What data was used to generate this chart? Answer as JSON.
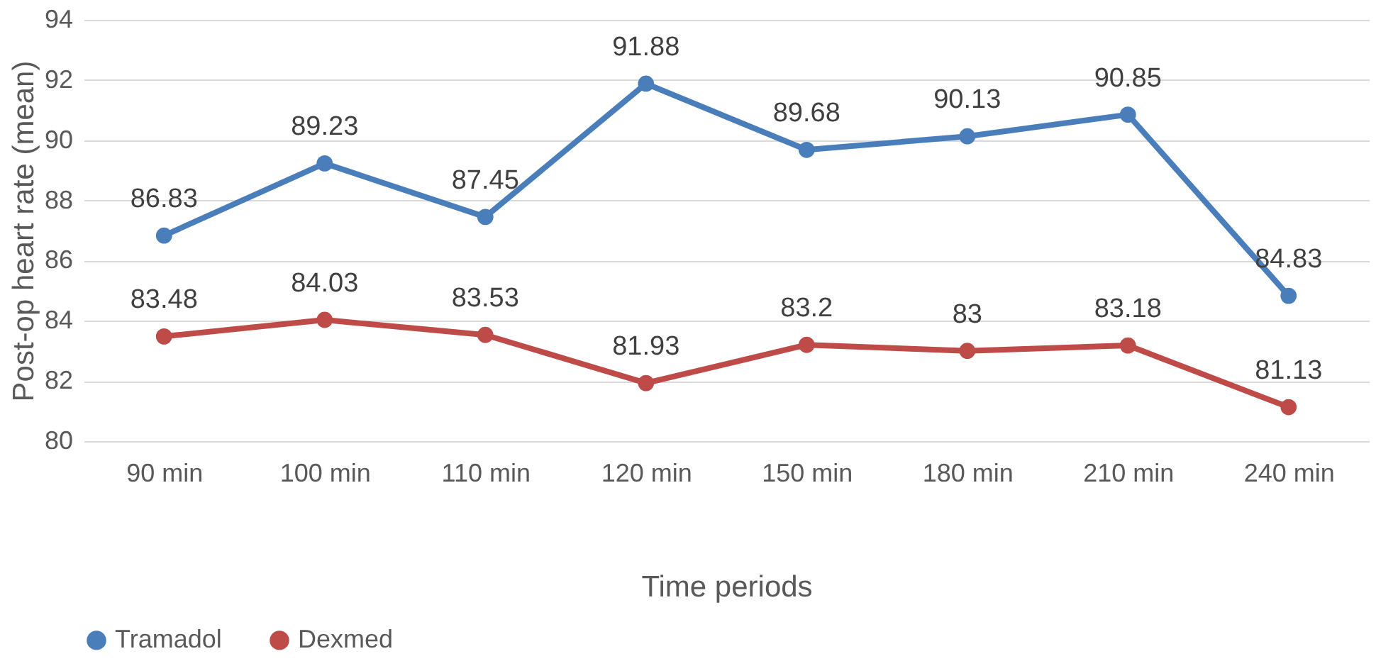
{
  "chart_data": {
    "type": "line",
    "xlabel": "Time periods",
    "ylabel": "Post-op heart rate (mean)",
    "categories": [
      "90 min",
      "100 min",
      "110 min",
      "120 min",
      "150 min",
      "180 min",
      "210 min",
      "240 min"
    ],
    "series": [
      {
        "name": "Tramadol",
        "color": "#4a7ebb",
        "values": [
          86.83,
          89.23,
          87.45,
          91.88,
          89.68,
          90.13,
          90.85,
          84.83
        ]
      },
      {
        "name": "Dexmed",
        "color": "#be4b48",
        "values": [
          83.48,
          84.03,
          83.53,
          81.93,
          83.2,
          83,
          83.18,
          81.13
        ]
      }
    ],
    "ylim": [
      80,
      94
    ],
    "yticks": [
      80,
      82,
      84,
      86,
      88,
      90,
      92,
      94
    ],
    "grid": "y",
    "legend": "bottom",
    "marker": "circle",
    "line_style": "solid",
    "data_labels": true
  }
}
